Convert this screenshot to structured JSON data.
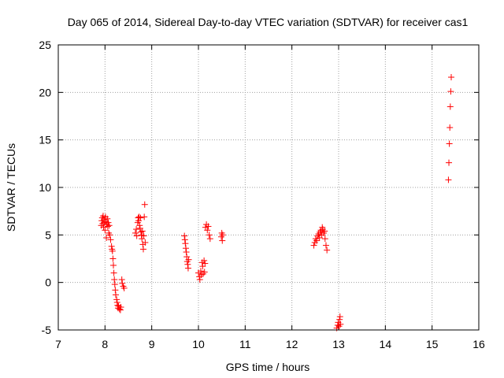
{
  "chart_data": {
    "type": "scatter",
    "title": "Day 065 of 2014, Sidereal Day-to-day VTEC variation (SDTVAR) for receiver cas1",
    "xlabel": "GPS time / hours",
    "ylabel": "SDTVAR / TECUs",
    "xlim": [
      7,
      16
    ],
    "ylim": [
      -5,
      25
    ],
    "xticks": [
      7,
      8,
      9,
      10,
      11,
      12,
      13,
      14,
      15,
      16
    ],
    "yticks": [
      -5,
      0,
      5,
      10,
      15,
      20,
      25
    ],
    "grid": true,
    "marker": "+",
    "color": "#ff0000",
    "series": [
      {
        "name": "SDTVAR",
        "points": [
          [
            7.92,
            6.0
          ],
          [
            7.93,
            6.5
          ],
          [
            7.94,
            6.8
          ],
          [
            7.95,
            6.2
          ],
          [
            7.96,
            7.0
          ],
          [
            7.97,
            5.8
          ],
          [
            7.98,
            6.6
          ],
          [
            7.99,
            6.3
          ],
          [
            8.0,
            5.5
          ],
          [
            8.01,
            6.9
          ],
          [
            8.02,
            6.4
          ],
          [
            8.03,
            4.7
          ],
          [
            8.04,
            6.1
          ],
          [
            8.05,
            6.7
          ],
          [
            8.06,
            5.9
          ],
          [
            8.07,
            6.3
          ],
          [
            8.08,
            5.2
          ],
          [
            8.09,
            6.0
          ],
          [
            8.1,
            5.0
          ],
          [
            8.12,
            4.5
          ],
          [
            8.14,
            3.8
          ],
          [
            8.15,
            3.5
          ],
          [
            8.16,
            3.3
          ],
          [
            8.17,
            2.5
          ],
          [
            8.18,
            1.8
          ],
          [
            8.19,
            1.0
          ],
          [
            8.2,
            0.3
          ],
          [
            8.21,
            -0.2
          ],
          [
            8.22,
            -0.8
          ],
          [
            8.23,
            -1.3
          ],
          [
            8.25,
            -1.8
          ],
          [
            8.26,
            -2.1
          ],
          [
            8.27,
            -2.4
          ],
          [
            8.28,
            -2.7
          ],
          [
            8.29,
            -2.5
          ],
          [
            8.31,
            -2.8
          ],
          [
            8.33,
            -2.9
          ],
          [
            8.34,
            -2.6
          ],
          [
            8.36,
            0.3
          ],
          [
            8.37,
            -0.1
          ],
          [
            8.39,
            -0.4
          ],
          [
            8.41,
            -0.6
          ],
          [
            8.65,
            5.2
          ],
          [
            8.67,
            5.6
          ],
          [
            8.68,
            4.9
          ],
          [
            8.7,
            6.3
          ],
          [
            8.71,
            6.8
          ],
          [
            8.72,
            6.5
          ],
          [
            8.73,
            6.9
          ],
          [
            8.74,
            6.0
          ],
          [
            8.75,
            5.7
          ],
          [
            8.76,
            6.8
          ],
          [
            8.77,
            5.3
          ],
          [
            8.78,
            5.0
          ],
          [
            8.79,
            4.6
          ],
          [
            8.8,
            5.4
          ],
          [
            8.81,
            4.0
          ],
          [
            8.82,
            3.5
          ],
          [
            8.83,
            4.9
          ],
          [
            8.84,
            6.9
          ],
          [
            8.85,
            8.2
          ],
          [
            8.86,
            4.2
          ],
          [
            9.7,
            4.9
          ],
          [
            9.71,
            4.5
          ],
          [
            9.72,
            4.1
          ],
          [
            9.73,
            3.6
          ],
          [
            9.74,
            3.2
          ],
          [
            9.75,
            2.7
          ],
          [
            9.76,
            2.2
          ],
          [
            9.77,
            1.9
          ],
          [
            9.78,
            1.5
          ],
          [
            9.79,
            2.4
          ],
          [
            10.0,
            1.0
          ],
          [
            10.02,
            0.6
          ],
          [
            10.03,
            0.3
          ],
          [
            10.05,
            1.2
          ],
          [
            10.06,
            0.8
          ],
          [
            10.08,
            2.1
          ],
          [
            10.09,
            1.7
          ],
          [
            10.1,
            0.9
          ],
          [
            10.12,
            2.3
          ],
          [
            10.13,
            1.1
          ],
          [
            10.14,
            2.0
          ],
          [
            10.15,
            5.8
          ],
          [
            10.17,
            6.1
          ],
          [
            10.19,
            5.5
          ],
          [
            10.21,
            5.9
          ],
          [
            10.23,
            5.0
          ],
          [
            10.25,
            4.6
          ],
          [
            10.49,
            4.8
          ],
          [
            10.5,
            5.2
          ],
          [
            10.51,
            4.4
          ],
          [
            10.52,
            5.0
          ],
          [
            12.47,
            3.9
          ],
          [
            12.49,
            4.2
          ],
          [
            12.51,
            4.6
          ],
          [
            12.53,
            4.4
          ],
          [
            12.55,
            4.9
          ],
          [
            12.57,
            5.1
          ],
          [
            12.59,
            4.7
          ],
          [
            12.6,
            5.3
          ],
          [
            12.62,
            5.5
          ],
          [
            12.64,
            5.0
          ],
          [
            12.65,
            5.8
          ],
          [
            12.66,
            5.6
          ],
          [
            12.68,
            5.2
          ],
          [
            12.7,
            5.4
          ],
          [
            12.71,
            4.6
          ],
          [
            12.73,
            3.9
          ],
          [
            12.75,
            3.4
          ],
          [
            12.96,
            -4.8
          ],
          [
            12.98,
            -4.5
          ],
          [
            12.99,
            -4.2
          ],
          [
            13.01,
            -4.6
          ],
          [
            13.02,
            -3.9
          ],
          [
            13.03,
            -3.6
          ],
          [
            13.04,
            -4.4
          ],
          [
            15.35,
            10.8
          ],
          [
            15.36,
            12.6
          ],
          [
            15.37,
            14.6
          ],
          [
            15.38,
            16.3
          ],
          [
            15.39,
            18.5
          ],
          [
            15.4,
            20.1
          ],
          [
            15.41,
            21.6
          ]
        ]
      }
    ]
  }
}
